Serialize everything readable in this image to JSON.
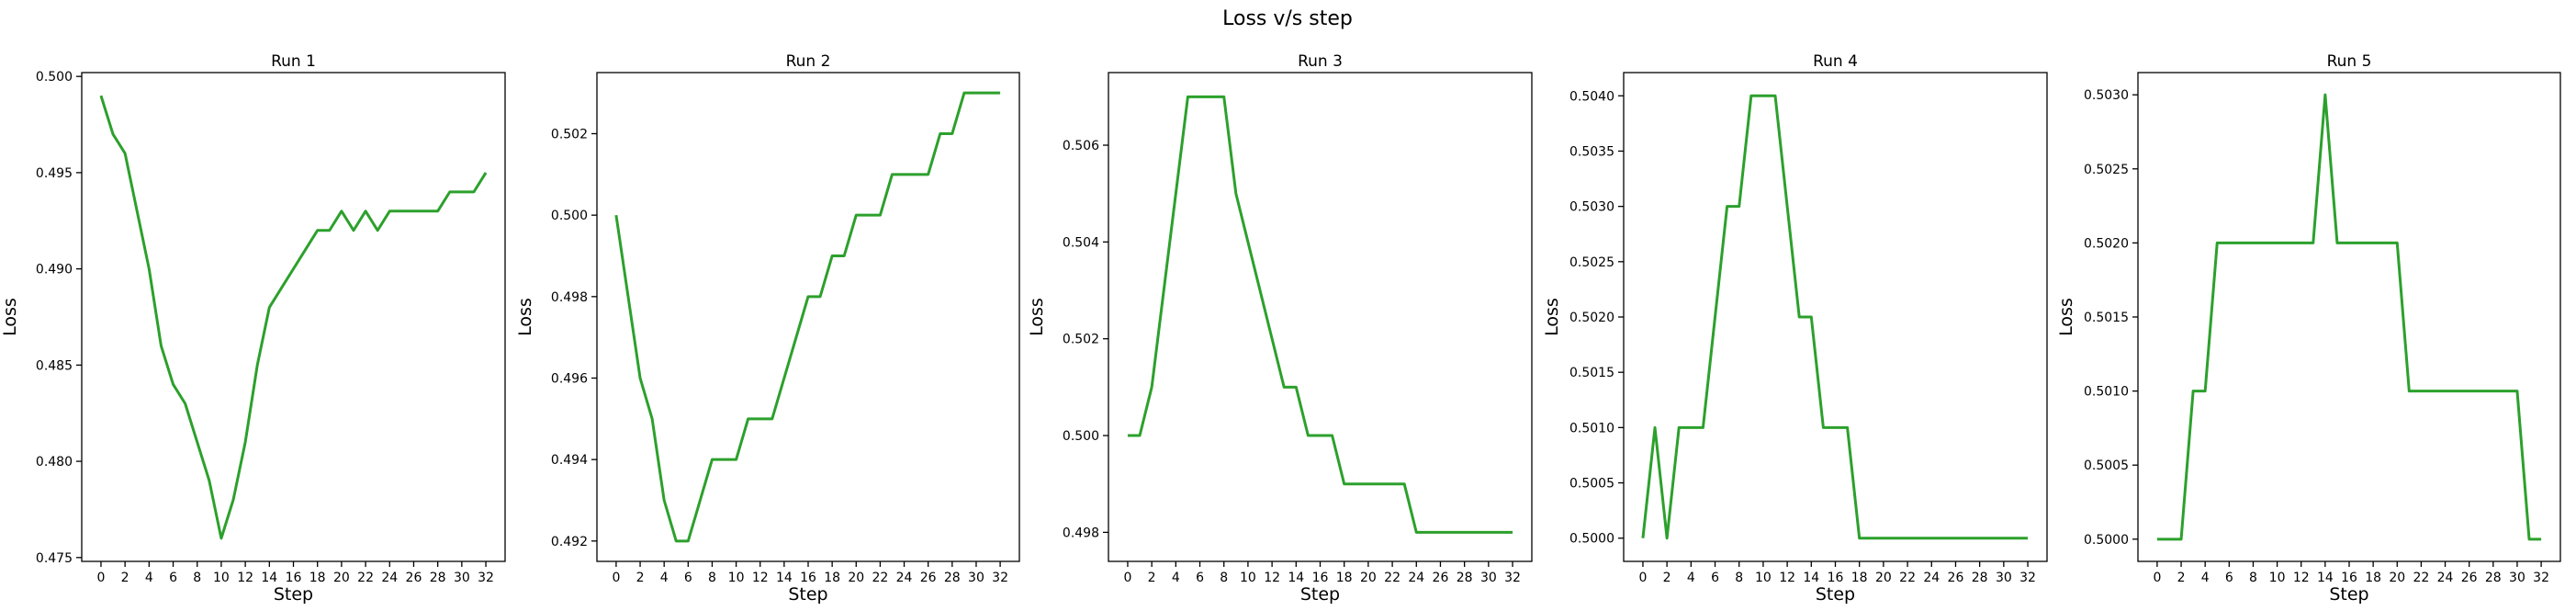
{
  "chart_data": {
    "suptitle": "Loss v/s step",
    "line_color": "#2ca02c",
    "panels": [
      {
        "type": "line",
        "title": "Run 1",
        "xlabel": "Step",
        "ylabel": "Loss",
        "xlim": [
          -1.6,
          33.6
        ],
        "ylim": [
          0.4748,
          0.5002
        ],
        "xticks": [
          0,
          2,
          4,
          6,
          8,
          10,
          12,
          14,
          16,
          18,
          20,
          22,
          24,
          26,
          28,
          30,
          32
        ],
        "yticks": [
          0.475,
          0.48,
          0.485,
          0.49,
          0.495,
          0.5
        ],
        "ytick_labels": [
          "0.475",
          "0.480",
          "0.485",
          "0.490",
          "0.495",
          "0.500"
        ],
        "x": [
          0,
          1,
          2,
          3,
          4,
          5,
          6,
          7,
          8,
          9,
          10,
          11,
          12,
          13,
          14,
          15,
          16,
          17,
          18,
          19,
          20,
          21,
          22,
          23,
          24,
          25,
          26,
          27,
          28,
          29,
          30,
          31,
          32
        ],
        "y": [
          0.499,
          0.497,
          0.496,
          0.493,
          0.49,
          0.486,
          0.484,
          0.483,
          0.481,
          0.479,
          0.476,
          0.478,
          0.481,
          0.485,
          0.488,
          0.489,
          0.49,
          0.491,
          0.492,
          0.492,
          0.493,
          0.492,
          0.493,
          0.492,
          0.493,
          0.493,
          0.493,
          0.493,
          0.493,
          0.494,
          0.494,
          0.494,
          0.495
        ]
      },
      {
        "type": "line",
        "title": "Run 2",
        "xlabel": "Step",
        "ylabel": "Loss",
        "xlim": [
          -1.6,
          33.6
        ],
        "ylim": [
          0.4915,
          0.5035
        ],
        "xticks": [
          0,
          2,
          4,
          6,
          8,
          10,
          12,
          14,
          16,
          18,
          20,
          22,
          24,
          26,
          28,
          30,
          32
        ],
        "yticks": [
          0.492,
          0.494,
          0.496,
          0.498,
          0.5,
          0.502
        ],
        "ytick_labels": [
          "0.492",
          "0.494",
          "0.496",
          "0.498",
          "0.500",
          "0.502"
        ],
        "x": [
          0,
          1,
          2,
          3,
          4,
          5,
          6,
          7,
          8,
          9,
          10,
          11,
          12,
          13,
          14,
          15,
          16,
          17,
          18,
          19,
          20,
          21,
          22,
          23,
          24,
          25,
          26,
          27,
          28,
          29,
          30,
          31,
          32
        ],
        "y": [
          0.5,
          0.498,
          0.496,
          0.495,
          0.493,
          0.492,
          0.492,
          0.493,
          0.494,
          0.494,
          0.494,
          0.495,
          0.495,
          0.495,
          0.496,
          0.497,
          0.498,
          0.498,
          0.499,
          0.499,
          0.5,
          0.5,
          0.5,
          0.501,
          0.501,
          0.501,
          0.501,
          0.502,
          0.502,
          0.503,
          0.503,
          0.503,
          0.503
        ]
      },
      {
        "type": "line",
        "title": "Run 3",
        "xlabel": "Step",
        "ylabel": "Loss",
        "xlim": [
          -1.6,
          33.6
        ],
        "ylim": [
          0.4974,
          0.5075
        ],
        "xticks": [
          0,
          2,
          4,
          6,
          8,
          10,
          12,
          14,
          16,
          18,
          20,
          22,
          24,
          26,
          28,
          30,
          32
        ],
        "yticks": [
          0.498,
          0.5,
          0.502,
          0.504,
          0.506
        ],
        "ytick_labels": [
          "0.498",
          "0.500",
          "0.502",
          "0.504",
          "0.506"
        ],
        "x": [
          0,
          1,
          2,
          3,
          4,
          5,
          6,
          7,
          8,
          9,
          10,
          11,
          12,
          13,
          14,
          15,
          16,
          17,
          18,
          19,
          20,
          21,
          22,
          23,
          24,
          25,
          26,
          27,
          28,
          29,
          30,
          31,
          32
        ],
        "y": [
          0.5,
          0.5,
          0.501,
          0.503,
          0.505,
          0.507,
          0.507,
          0.507,
          0.507,
          0.505,
          0.504,
          0.503,
          0.502,
          0.501,
          0.501,
          0.5,
          0.5,
          0.5,
          0.499,
          0.499,
          0.499,
          0.499,
          0.499,
          0.499,
          0.498,
          0.498,
          0.498,
          0.498,
          0.498,
          0.498,
          0.498,
          0.498,
          0.498
        ]
      },
      {
        "type": "line",
        "title": "Run 4",
        "xlabel": "Step",
        "ylabel": "Loss",
        "xlim": [
          -1.6,
          33.6
        ],
        "ylim": [
          0.49979,
          0.50421
        ],
        "xticks": [
          0,
          2,
          4,
          6,
          8,
          10,
          12,
          14,
          16,
          18,
          20,
          22,
          24,
          26,
          28,
          30,
          32
        ],
        "yticks": [
          0.5,
          0.5005,
          0.501,
          0.5015,
          0.502,
          0.5025,
          0.503,
          0.5035,
          0.504
        ],
        "ytick_labels": [
          "0.5000",
          "0.5005",
          "0.5010",
          "0.5015",
          "0.5020",
          "0.5025",
          "0.5030",
          "0.5035",
          "0.5040"
        ],
        "x": [
          0,
          1,
          2,
          3,
          4,
          5,
          6,
          7,
          8,
          9,
          10,
          11,
          12,
          13,
          14,
          15,
          16,
          17,
          18,
          19,
          20,
          21,
          22,
          23,
          24,
          25,
          26,
          27,
          28,
          29,
          30,
          31,
          32
        ],
        "y": [
          0.5,
          0.501,
          0.5,
          0.501,
          0.501,
          0.501,
          0.502,
          0.503,
          0.503,
          0.504,
          0.504,
          0.504,
          0.503,
          0.502,
          0.502,
          0.501,
          0.501,
          0.501,
          0.5,
          0.5,
          0.5,
          0.5,
          0.5,
          0.5,
          0.5,
          0.5,
          0.5,
          0.5,
          0.5,
          0.5,
          0.5,
          0.5,
          0.5
        ]
      },
      {
        "type": "line",
        "title": "Run 5",
        "xlabel": "Step",
        "ylabel": "Loss",
        "xlim": [
          -1.6,
          33.6
        ],
        "ylim": [
          0.49985,
          0.50315
        ],
        "xticks": [
          0,
          2,
          4,
          6,
          8,
          10,
          12,
          14,
          16,
          18,
          20,
          22,
          24,
          26,
          28,
          30,
          32
        ],
        "yticks": [
          0.5,
          0.5005,
          0.501,
          0.5015,
          0.502,
          0.5025,
          0.503
        ],
        "ytick_labels": [
          "0.5000",
          "0.5005",
          "0.5010",
          "0.5015",
          "0.5020",
          "0.5025",
          "0.5030"
        ],
        "x": [
          0,
          1,
          2,
          3,
          4,
          5,
          6,
          7,
          8,
          9,
          10,
          11,
          12,
          13,
          14,
          15,
          16,
          17,
          18,
          19,
          20,
          21,
          22,
          23,
          24,
          25,
          26,
          27,
          28,
          29,
          30,
          31,
          32
        ],
        "y": [
          0.5,
          0.5,
          0.5,
          0.501,
          0.501,
          0.502,
          0.502,
          0.502,
          0.502,
          0.502,
          0.502,
          0.502,
          0.502,
          0.502,
          0.503,
          0.502,
          0.502,
          0.502,
          0.502,
          0.502,
          0.502,
          0.501,
          0.501,
          0.501,
          0.501,
          0.501,
          0.501,
          0.501,
          0.501,
          0.501,
          0.501,
          0.5,
          0.5
        ]
      }
    ]
  }
}
